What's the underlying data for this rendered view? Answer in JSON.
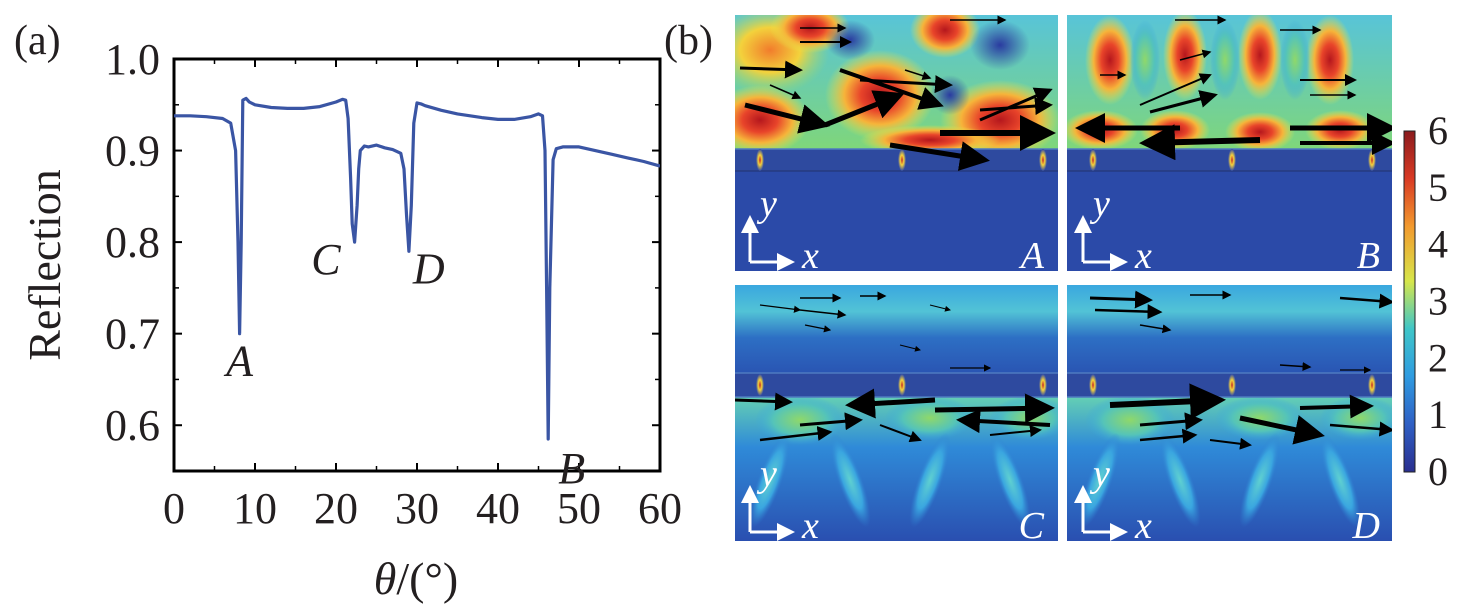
{
  "panel_a_label": "(a)",
  "panel_b_label": "(b)",
  "chart_data": {
    "type": "line",
    "title": "",
    "xlabel_var": "θ",
    "xlabel_unit": "/(°)",
    "ylabel": "Reflection",
    "xlim": [
      0,
      60
    ],
    "ylim": [
      0.55,
      1.0
    ],
    "xticks": [
      "0",
      "10",
      "20",
      "30",
      "40",
      "50",
      "60"
    ],
    "yticks": [
      "0.6",
      "0.7",
      "0.8",
      "0.9",
      "1.0"
    ],
    "grid": false,
    "series_color": "#3a55a4",
    "series": [
      {
        "x": [
          0,
          2,
          4,
          6,
          7,
          7.6,
          7.9,
          8.1,
          8.3,
          8.5,
          8.9,
          9.3,
          10,
          12,
          14,
          16,
          18,
          20,
          20.8,
          21.2,
          21.5,
          21.8,
          22.0,
          22.3,
          22.6,
          22.8,
          23,
          23.5,
          24,
          25,
          26,
          27,
          28,
          28.4,
          28.7,
          29.0,
          29.3,
          29.6,
          30,
          30.5,
          31,
          33,
          35,
          38,
          40,
          42,
          44,
          45,
          45.5,
          45.8,
          46.0,
          46.2,
          46.4,
          46.8,
          47.2,
          48,
          50,
          52,
          54,
          56,
          58,
          60
        ],
        "y": [
          0.938,
          0.938,
          0.937,
          0.935,
          0.93,
          0.9,
          0.8,
          0.7,
          0.8,
          0.955,
          0.957,
          0.953,
          0.95,
          0.947,
          0.946,
          0.946,
          0.948,
          0.953,
          0.956,
          0.955,
          0.935,
          0.87,
          0.82,
          0.8,
          0.84,
          0.88,
          0.9,
          0.905,
          0.904,
          0.906,
          0.903,
          0.901,
          0.897,
          0.88,
          0.83,
          0.79,
          0.84,
          0.93,
          0.952,
          0.951,
          0.949,
          0.944,
          0.94,
          0.936,
          0.934,
          0.934,
          0.937,
          0.94,
          0.938,
          0.9,
          0.75,
          0.585,
          0.75,
          0.89,
          0.902,
          0.904,
          0.904,
          0.9,
          0.896,
          0.892,
          0.888,
          0.883
        ]
      }
    ],
    "annotations": [
      {
        "text": "A",
        "x": 8.1,
        "y": 0.7
      },
      {
        "text": "C",
        "x": 22.3,
        "y": 0.8
      },
      {
        "text": "D",
        "x": 29.0,
        "y": 0.79
      },
      {
        "text": "B",
        "x": 46.2,
        "y": 0.585
      }
    ]
  },
  "field_maps": {
    "panels": [
      {
        "label": "A",
        "y_axis": "y",
        "x_axis": "x",
        "mode": "upper"
      },
      {
        "label": "B",
        "y_axis": "y",
        "x_axis": "x",
        "mode": "upper"
      },
      {
        "label": "C",
        "y_axis": "y",
        "x_axis": "x",
        "mode": "lower"
      },
      {
        "label": "D",
        "y_axis": "y",
        "x_axis": "x",
        "mode": "lower"
      }
    ],
    "colorbar": {
      "range": [
        0,
        6
      ],
      "ticks": [
        "0",
        "1",
        "2",
        "3",
        "4",
        "5",
        "6"
      ],
      "colors": [
        "#2a2f8f",
        "#2f5fc4",
        "#2f9be0",
        "#3fc6c8",
        "#d7e64a",
        "#f29a2e",
        "#d93a24",
        "#8b1b1e"
      ]
    }
  }
}
